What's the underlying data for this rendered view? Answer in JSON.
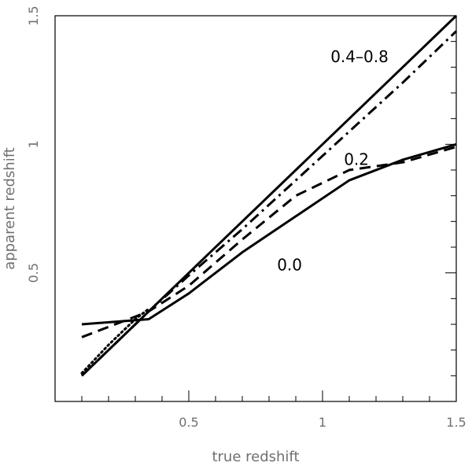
{
  "chart_data": {
    "type": "line",
    "title": "",
    "xlabel": "true redshift",
    "ylabel": "apparent redshift",
    "xlim": [
      0.0,
      1.5
    ],
    "ylim": [
      0.0,
      1.5
    ],
    "x_ticks": [
      0.5,
      1,
      1.5
    ],
    "x_tick_labels": [
      "0.5",
      "1",
      "1.5"
    ],
    "y_ticks": [
      0.5,
      1,
      1.5
    ],
    "y_tick_labels": [
      "0.5",
      "1",
      "1.5"
    ],
    "grid": false,
    "colors": {
      "line": "#000000",
      "axis": "#000000",
      "text": "#707070"
    },
    "series": [
      {
        "style": "solid",
        "x": [
          0.1,
          0.35,
          0.5,
          0.7,
          0.9,
          1.1,
          1.3,
          1.5
        ],
        "y": [
          0.1,
          0.35,
          0.5,
          0.7,
          0.9,
          1.1,
          1.3,
          1.5
        ]
      },
      {
        "style": "dashdot",
        "x": [
          0.1,
          0.35,
          0.5,
          0.7,
          0.9,
          1.1,
          1.3,
          1.5
        ],
        "y": [
          0.1,
          0.35,
          0.49,
          0.67,
          0.86,
          1.05,
          1.24,
          1.44
        ]
      },
      {
        "style": "dotted",
        "x": [
          0.1,
          0.2,
          0.3,
          0.35
        ],
        "y": [
          0.11,
          0.22,
          0.32,
          0.36
        ]
      },
      {
        "style": "dashed",
        "x": [
          0.1,
          0.35,
          0.5,
          0.7,
          0.9,
          1.1,
          1.3,
          1.5
        ],
        "y": [
          0.25,
          0.35,
          0.45,
          0.63,
          0.8,
          0.9,
          0.93,
          0.99
        ]
      },
      {
        "style": "solid",
        "x": [
          0.1,
          0.35,
          0.5,
          0.7,
          0.9,
          1.1,
          1.3,
          1.5
        ],
        "y": [
          0.3,
          0.32,
          0.42,
          0.58,
          0.72,
          0.86,
          0.94,
          1.0
        ]
      }
    ],
    "annotations": [
      {
        "text": "0.4–0.8",
        "x": 1.03,
        "y": 1.32
      },
      {
        "text": "0.2",
        "x": 1.08,
        "y": 0.92
      },
      {
        "text": "0.0",
        "x": 0.83,
        "y": 0.51
      }
    ]
  }
}
